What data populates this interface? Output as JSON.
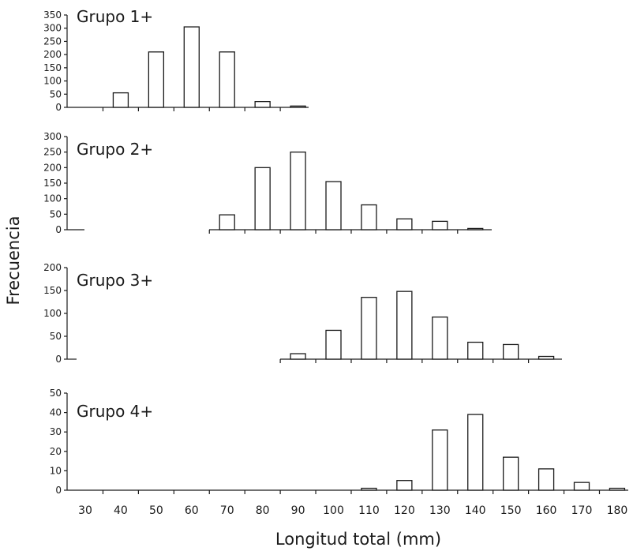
{
  "chart_data": [
    {
      "type": "bar",
      "title": "Grupo 1+",
      "ylim": [
        0,
        350
      ],
      "yticks": [
        0,
        50,
        100,
        150,
        200,
        250,
        300,
        350
      ],
      "x": [
        40,
        50,
        60,
        70,
        80,
        90
      ],
      "values": [
        55,
        210,
        305,
        210,
        22,
        5
      ],
      "grid": false
    },
    {
      "type": "bar",
      "title": "Grupo 2+",
      "ylim": [
        0,
        300
      ],
      "yticks": [
        0,
        50,
        100,
        150,
        200,
        250,
        300
      ],
      "x": [
        70,
        80,
        90,
        100,
        110,
        120,
        130,
        140
      ],
      "values": [
        48,
        200,
        250,
        155,
        80,
        35,
        27,
        4
      ],
      "grid": false
    },
    {
      "type": "bar",
      "title": "Grupo 3+",
      "ylim": [
        0,
        200
      ],
      "yticks": [
        0,
        50,
        100,
        150,
        200
      ],
      "x": [
        90,
        100,
        110,
        120,
        130,
        140,
        150,
        160
      ],
      "values": [
        12,
        63,
        135,
        148,
        92,
        37,
        32,
        6
      ],
      "grid": false
    },
    {
      "type": "bar",
      "title": "Grupo 4+",
      "ylim": [
        0,
        50
      ],
      "yticks": [
        0,
        10,
        20,
        30,
        40,
        50
      ],
      "x": [
        110,
        120,
        130,
        140,
        150,
        160,
        170,
        180
      ],
      "values": [
        1,
        5,
        31,
        39,
        17,
        11,
        4,
        1
      ],
      "grid": false
    }
  ],
  "shared_axes": {
    "ylabel": "Frecuencia",
    "xlabel": "Longitud total (mm)",
    "xticks": [
      30,
      40,
      50,
      60,
      70,
      80,
      90,
      100,
      110,
      120,
      130,
      140,
      150,
      160,
      170,
      180
    ]
  }
}
